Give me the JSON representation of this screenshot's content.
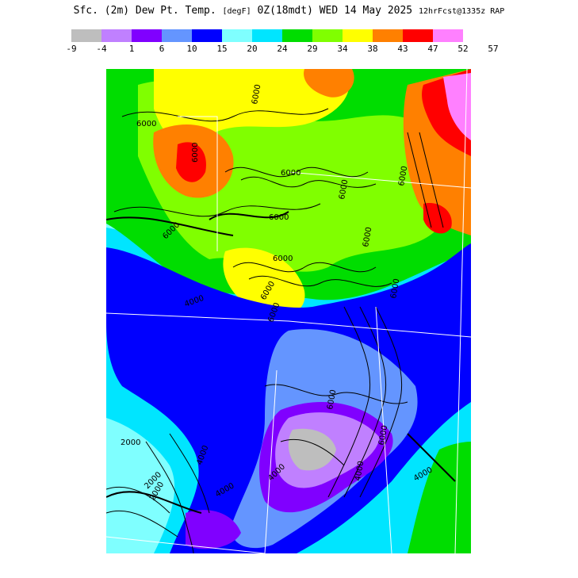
{
  "header": {
    "title_main": "Sfc. (2m) Dew Pt. Temp.",
    "title_units": "[degF]",
    "title_valid": "0Z(18mdt) WED 14 May 2025",
    "title_model": "12hrFcst@1335z RAP"
  },
  "legend": {
    "colors": [
      "#bebebe",
      "#c080ff",
      "#8000ff",
      "#6495ff",
      "#0000ff",
      "#7fffff",
      "#00e5ff",
      "#00dd00",
      "#80ff00",
      "#ffff00",
      "#ff8000",
      "#ff0000",
      "#ff80ff"
    ],
    "labels": [
      "-9",
      "-4",
      "1",
      "6",
      "10",
      "15",
      "20",
      "24",
      "29",
      "34",
      "38",
      "43",
      "47",
      "52",
      "57"
    ]
  },
  "map": {
    "contour_labels": [
      "6000",
      "6000",
      "6000",
      "6000",
      "6000",
      "6000",
      "6000",
      "6000",
      "6000",
      "6000",
      "6000",
      "6000",
      "6000",
      "2000",
      "2000",
      "2000",
      "4000",
      "4000",
      "4000",
      "4000",
      "4000",
      "4000",
      "6000",
      "6000"
    ]
  }
}
